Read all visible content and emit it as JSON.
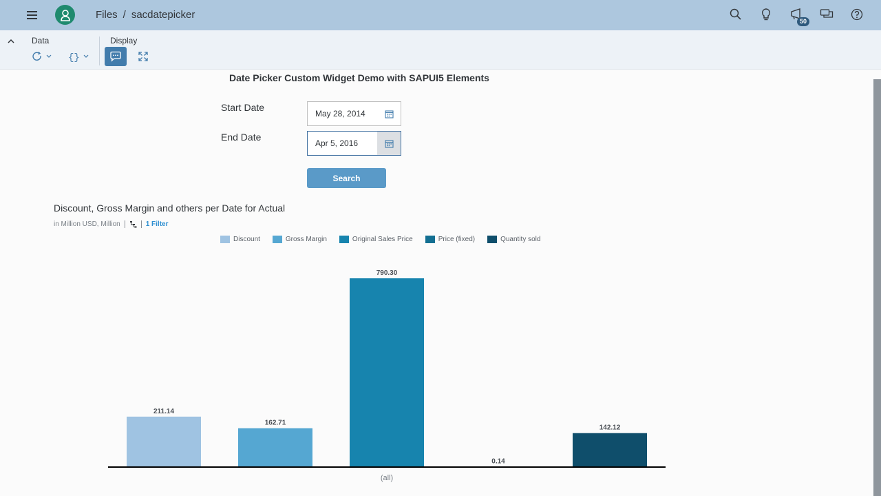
{
  "shell": {
    "breadcrumb": [
      "Files",
      "sacdatepicker"
    ],
    "separator": "/",
    "notification_count": "50",
    "icons": [
      "search-icon",
      "lightbulb-icon",
      "notifications-icon",
      "discussion-icon",
      "help-icon"
    ]
  },
  "toolbar": {
    "data_label": "Data",
    "display_label": "Display"
  },
  "widget": {
    "title": "Date Picker Custom Widget Demo with SAPUI5 Elements",
    "start_label": "Start Date",
    "start_value": "May 28, 2014",
    "end_label": "End Date",
    "end_value": "Apr 5, 2016",
    "search_label": "Search"
  },
  "chart_header": {
    "title": "Discount, Gross Margin and others per Date for Actual",
    "units": "in Million USD, Million",
    "filter": "1 Filter"
  },
  "colors": {
    "shell": "#adc7de",
    "accent": "#427cac",
    "button": "#5a9ac8"
  },
  "chart_data": {
    "type": "bar",
    "categories": [
      "(all)"
    ],
    "series": [
      {
        "name": "Discount",
        "value": 211.14,
        "label": "211.14",
        "color": "#9fc3e2"
      },
      {
        "name": "Gross Margin",
        "value": 162.71,
        "label": "162.71",
        "color": "#55a7d2"
      },
      {
        "name": "Original Sales Price",
        "value": 790.3,
        "label": "790.30",
        "color": "#1784ae"
      },
      {
        "name": "Price (fixed)",
        "value": 0.14,
        "label": "0.14",
        "color": "#136f92"
      },
      {
        "name": "Quantity sold",
        "value": 142.12,
        "label": "142.12",
        "color": "#0f4e6b"
      }
    ],
    "xlabel": "(all)",
    "ylim": [
      0,
      790.3
    ],
    "grid": false,
    "legend": "top"
  }
}
